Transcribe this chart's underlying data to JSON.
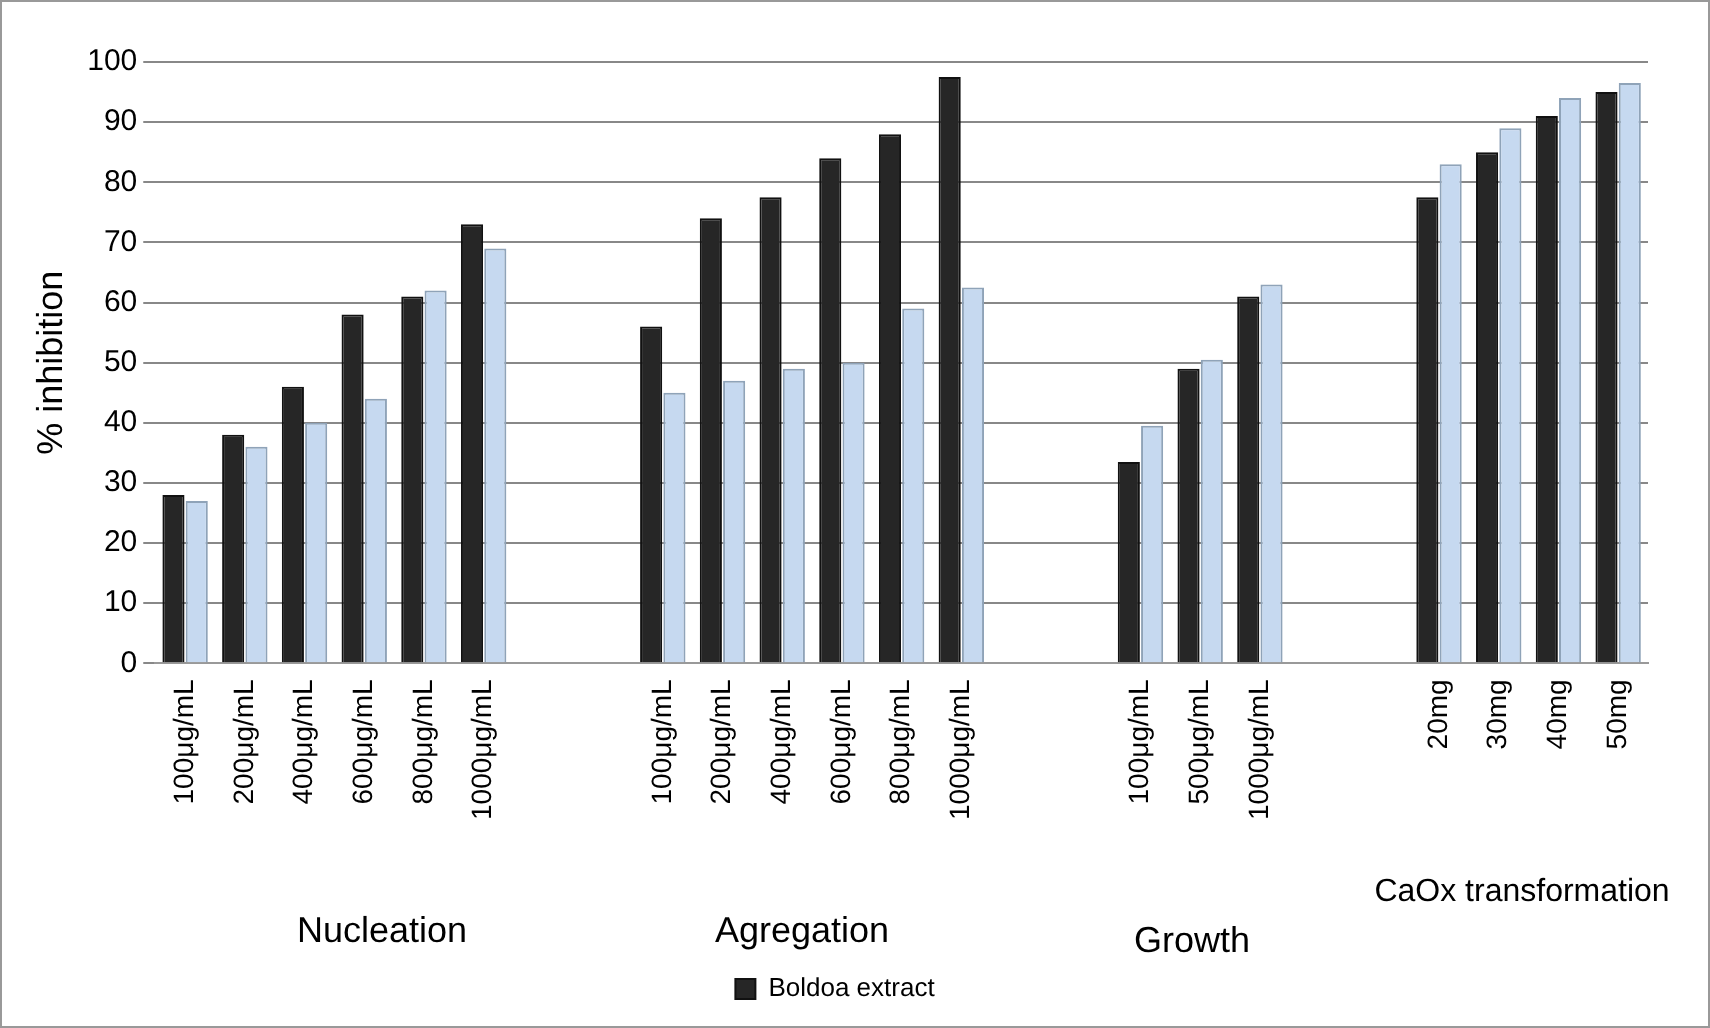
{
  "chart_data": {
    "type": "bar",
    "ylabel": "% inhibition",
    "categories": [
      "100μg/mL",
      "200μg/mL",
      "400μg/mL",
      "600μg/mL",
      "800μg/mL",
      "1000μg/mL",
      null,
      null,
      "100μg/mL",
      "200μg/mL",
      "400μg/mL",
      "600μg/mL",
      "800μg/mL",
      "1000μg/mL",
      null,
      null,
      "100μg/mL",
      "500μg/mL",
      "1000μg/mL",
      null,
      null,
      "20mg",
      "30mg",
      "40mg",
      "50mg"
    ],
    "series": [
      {
        "name": "Boldoa extract",
        "color": "#262626",
        "values": [
          28,
          38,
          46,
          58,
          61,
          73,
          null,
          null,
          56,
          74,
          77.5,
          84,
          88,
          97.5,
          null,
          null,
          33.5,
          49,
          61,
          null,
          null,
          77.5,
          85,
          91,
          95
        ]
      },
      {
        "color": "#c6d9f0",
        "values": [
          27,
          36,
          40,
          44,
          62,
          69,
          null,
          null,
          45,
          47,
          49,
          50,
          59,
          62.5,
          null,
          null,
          39.5,
          50.5,
          63,
          null,
          null,
          83,
          89,
          94,
          96.5
        ]
      }
    ],
    "ylim": [
      0,
      100
    ],
    "yticks": [
      0,
      10,
      20,
      30,
      40,
      50,
      60,
      70,
      80,
      90,
      100
    ],
    "grid": "y",
    "legend": "bottom",
    "annotations": [
      "Nucleation",
      "Agregation",
      "Growth",
      "CaOx transformation"
    ]
  }
}
